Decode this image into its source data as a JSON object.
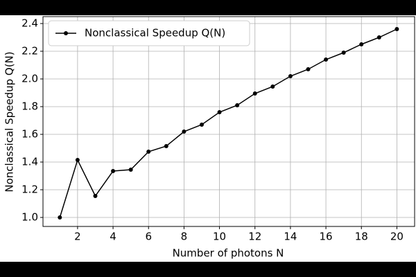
{
  "chart_data": {
    "type": "line",
    "xlabel": "Number of photons N",
    "ylabel": "Nonclassical Speedup Q(N)",
    "x": [
      1,
      2,
      3,
      4,
      5,
      6,
      7,
      8,
      9,
      10,
      11,
      12,
      13,
      14,
      15,
      16,
      17,
      18,
      19,
      20
    ],
    "series": [
      {
        "name": "Nonclassical Speedup Q(N)",
        "color": "#000000",
        "values": [
          1.0,
          1.415,
          1.155,
          1.335,
          1.345,
          1.475,
          1.515,
          1.62,
          1.67,
          1.76,
          1.81,
          1.895,
          1.945,
          2.02,
          2.07,
          2.14,
          2.19,
          2.25,
          2.3,
          2.36
        ]
      }
    ],
    "xlim": [
      0.05,
      21.0
    ],
    "ylim": [
      0.935,
      2.45
    ],
    "xticks": [
      2,
      4,
      6,
      8,
      10,
      12,
      14,
      16,
      18,
      20
    ],
    "yticks": [
      {
        "value": 1.0,
        "label": "1.0"
      },
      {
        "value": 1.2,
        "label": "1.2"
      },
      {
        "value": 1.4,
        "label": "1.4"
      },
      {
        "value": 1.6,
        "label": "1.6"
      },
      {
        "value": 1.8,
        "label": "1.8"
      },
      {
        "value": 2.0,
        "label": "2.0"
      },
      {
        "value": 2.2,
        "label": "2.2"
      },
      {
        "value": 2.4,
        "label": "2.4"
      }
    ],
    "grid": true,
    "legend": "upper left"
  }
}
